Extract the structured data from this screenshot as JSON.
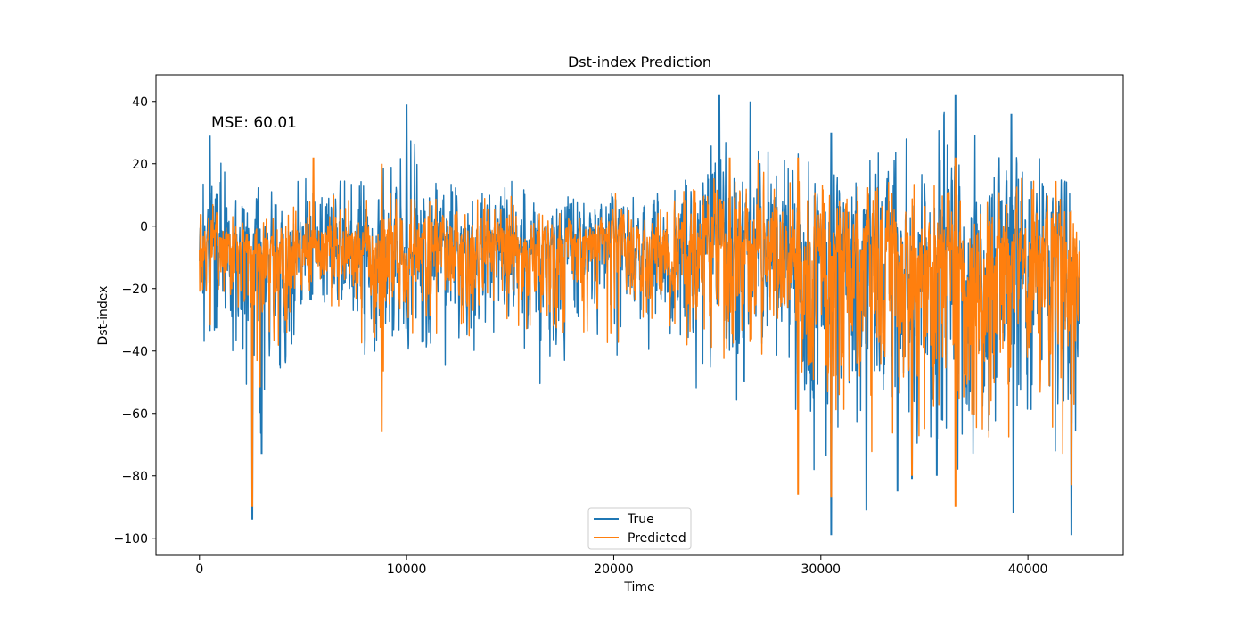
{
  "chart_data": {
    "type": "line",
    "title": "Dst-index Prediction",
    "xlabel": "Time",
    "ylabel": "Dst-index",
    "xlim": [
      -2100,
      44600
    ],
    "ylim": [
      -105.5,
      48.5
    ],
    "x_ticks": [
      0,
      10000,
      20000,
      30000,
      40000
    ],
    "x_tick_labels": [
      "0",
      "10000",
      "20000",
      "30000",
      "40000"
    ],
    "y_ticks": [
      -100,
      -80,
      -60,
      -40,
      -20,
      0,
      20,
      40
    ],
    "y_tick_labels": [
      "−100",
      "−80",
      "−60",
      "−40",
      "−20",
      "0",
      "20",
      "40"
    ],
    "grid": false,
    "legend_position": "lower center",
    "annotation": "MSE: 60.01",
    "n_points": 42500,
    "series": [
      {
        "name": "True",
        "color": "#1f77b4",
        "envelope_x": [
          0,
          1000,
          2000,
          3000,
          4000,
          5000,
          6000,
          7000,
          8000,
          9000,
          10000,
          11000,
          12000,
          13000,
          14000,
          15000,
          16000,
          17000,
          18000,
          19000,
          20000,
          21000,
          22000,
          23000,
          24000,
          25000,
          26000,
          27000,
          28000,
          29000,
          30000,
          31000,
          32000,
          33000,
          34000,
          35000,
          36000,
          37000,
          38000,
          39000,
          40000,
          41000,
          42000,
          42500
        ],
        "upper": [
          20,
          22,
          14,
          12,
          12,
          16,
          14,
          16,
          14,
          20,
          38,
          14,
          16,
          12,
          14,
          16,
          12,
          8,
          10,
          8,
          14,
          10,
          10,
          14,
          20,
          40,
          24,
          38,
          26,
          24,
          30,
          18,
          24,
          26,
          28,
          30,
          40,
          34,
          32,
          36,
          20,
          26,
          24,
          14
        ],
        "lower": [
          -40,
          -40,
          -50,
          -70,
          -50,
          -30,
          -35,
          -30,
          -45,
          -60,
          -42,
          -50,
          -55,
          -45,
          -38,
          -40,
          -45,
          -65,
          -40,
          -55,
          -48,
          -35,
          -45,
          -40,
          -58,
          -45,
          -60,
          -50,
          -40,
          -65,
          -95,
          -70,
          -88,
          -82,
          -85,
          -78,
          -90,
          -75,
          -80,
          -88,
          -60,
          -75,
          -98,
          -60
        ],
        "mean": [
          -8,
          -5,
          -8,
          -10,
          -8,
          -8,
          -6,
          -7,
          -8,
          -8,
          -7,
          -8,
          -7,
          -6,
          -6,
          -7,
          -8,
          -6,
          -6,
          -5,
          -5,
          -6,
          -5,
          -6,
          -7,
          -6,
          -7,
          -8,
          -8,
          -9,
          -10,
          -9,
          -10,
          -10,
          -10,
          -11,
          -10,
          -10,
          -11,
          -11,
          -10,
          -11,
          -12,
          -10
        ],
        "spikes_up": [
          [
            500,
            29
          ],
          [
            10000,
            39
          ],
          [
            25100,
            42
          ],
          [
            26600,
            40
          ],
          [
            30500,
            30
          ],
          [
            36500,
            42
          ],
          [
            39200,
            36
          ]
        ],
        "spikes_down": [
          [
            2550,
            -94
          ],
          [
            3000,
            -73
          ],
          [
            30500,
            -99
          ],
          [
            32200,
            -91
          ],
          [
            33700,
            -85
          ],
          [
            34400,
            -81
          ],
          [
            35600,
            -80
          ],
          [
            36600,
            -78
          ],
          [
            39300,
            -92
          ],
          [
            42100,
            -99
          ]
        ]
      },
      {
        "name": "Predicted",
        "color": "#ff7f0e",
        "envelope_x": [
          0,
          1000,
          2000,
          3000,
          4000,
          5000,
          6000,
          7000,
          8000,
          9000,
          10000,
          11000,
          12000,
          13000,
          14000,
          15000,
          16000,
          17000,
          18000,
          19000,
          20000,
          21000,
          22000,
          23000,
          24000,
          25000,
          26000,
          27000,
          28000,
          29000,
          30000,
          31000,
          32000,
          33000,
          34000,
          35000,
          36000,
          37000,
          38000,
          39000,
          40000,
          41000,
          42000,
          42500
        ],
        "upper": [
          8,
          10,
          4,
          2,
          4,
          10,
          8,
          12,
          10,
          18,
          16,
          8,
          10,
          8,
          10,
          10,
          6,
          6,
          4,
          4,
          12,
          6,
          6,
          10,
          14,
          18,
          16,
          22,
          20,
          16,
          18,
          10,
          14,
          16,
          14,
          18,
          20,
          18,
          18,
          20,
          14,
          16,
          16,
          4
        ],
        "lower": [
          -30,
          -35,
          -40,
          -60,
          -40,
          -25,
          -28,
          -25,
          -40,
          -55,
          -35,
          -40,
          -45,
          -38,
          -30,
          -32,
          -38,
          -58,
          -35,
          -48,
          -40,
          -28,
          -38,
          -32,
          -50,
          -40,
          -55,
          -45,
          -35,
          -58,
          -80,
          -62,
          -78,
          -72,
          -78,
          -70,
          -80,
          -68,
          -70,
          -78,
          -55,
          -68,
          -85,
          -50
        ],
        "mean": [
          -8,
          -5,
          -8,
          -10,
          -8,
          -8,
          -6,
          -7,
          -8,
          -8,
          -7,
          -8,
          -7,
          -6,
          -6,
          -7,
          -8,
          -6,
          -6,
          -5,
          -5,
          -6,
          -5,
          -6,
          -7,
          -6,
          -7,
          -8,
          -8,
          -9,
          -10,
          -9,
          -10,
          -10,
          -10,
          -11,
          -10,
          -10,
          -11,
          -11,
          -10,
          -11,
          -12,
          -10
        ],
        "spikes_up": [
          [
            5500,
            22
          ],
          [
            8800,
            20
          ],
          [
            25600,
            22
          ],
          [
            28900,
            22
          ],
          [
            36500,
            22
          ]
        ],
        "spikes_down": [
          [
            2550,
            -90
          ],
          [
            8800,
            -66
          ],
          [
            28900,
            -86
          ],
          [
            30500,
            -87
          ],
          [
            34400,
            -80
          ],
          [
            36500,
            -90
          ],
          [
            42100,
            -83
          ]
        ]
      }
    ]
  }
}
